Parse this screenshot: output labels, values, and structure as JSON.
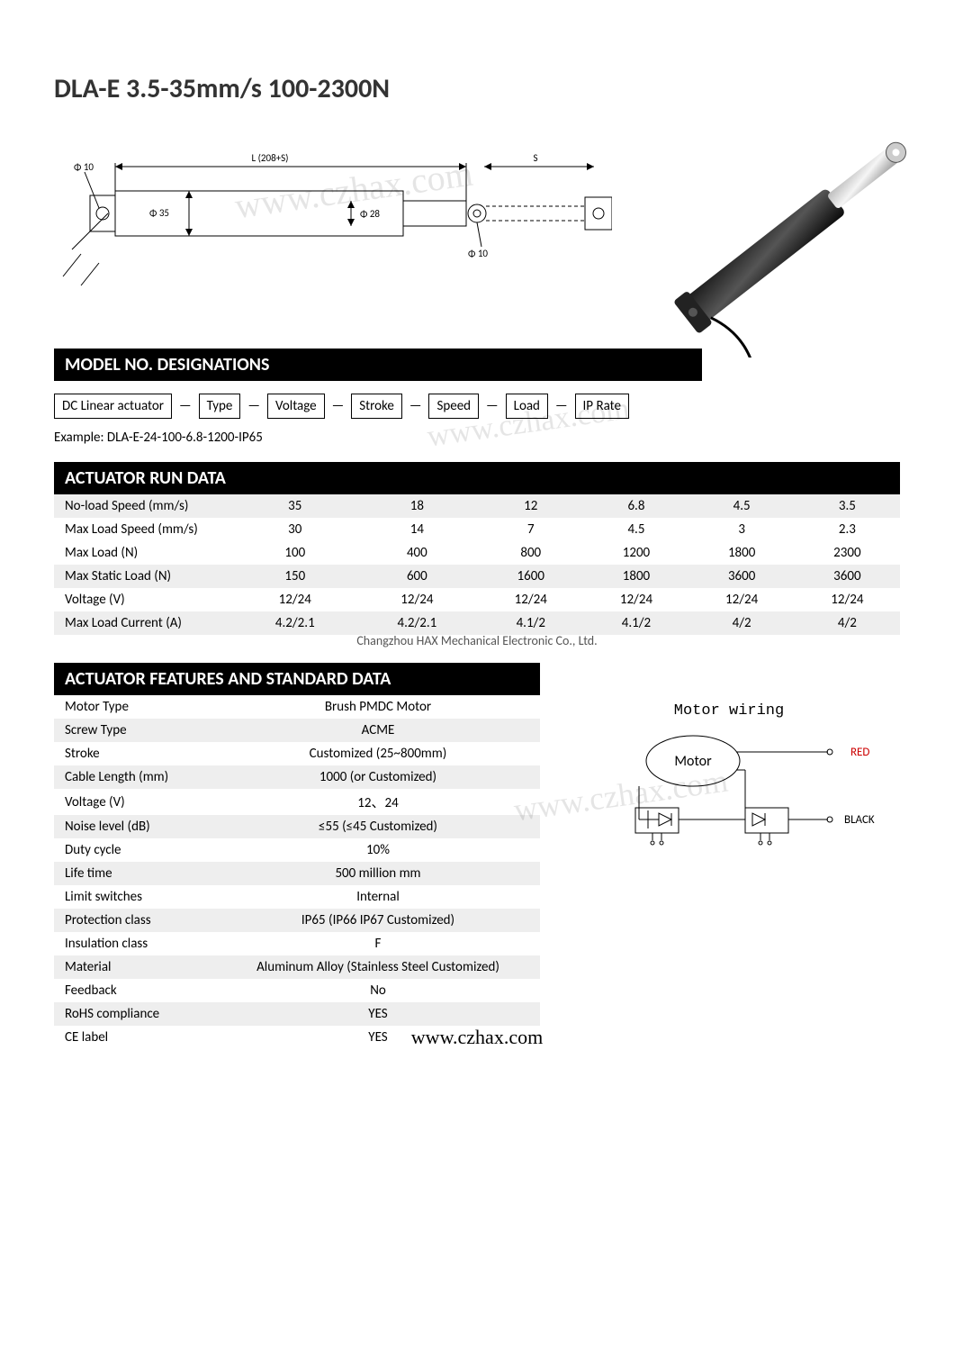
{
  "title": "DLA-E   3.5-35mm/s 100-2300N",
  "watermark": "www.czhax.com",
  "footer_url": "www.czhax.com",
  "copyright": "Changzhou HAX Mechanical Electronic Co., Ltd.",
  "diagram": {
    "labels": {
      "phi10_left": "Φ 10",
      "phi35": "Φ 35",
      "phi28": "Φ 28",
      "phi10_mid": "Φ 10",
      "L": "L (208+S)",
      "S": "S"
    }
  },
  "sections": {
    "model": "MODEL NO. DESIGNATIONS",
    "run": "ACTUATOR RUN DATA",
    "features": "ACTUATOR FEATURES AND STANDARD DATA"
  },
  "model_parts": [
    "DC Linear actuator",
    "Type",
    "Voltage",
    "Stroke",
    "Speed",
    "Load",
    "IP Rate"
  ],
  "model_example": "Example: DLA-E-24-100-6.8-1200-IP65",
  "run_data": {
    "rows": [
      {
        "label": "No-load Speed (mm/s)",
        "vals": [
          "35",
          "18",
          "12",
          "6.8",
          "4.5",
          "3.5"
        ],
        "shade": true
      },
      {
        "label": "Max Load Speed (mm/s)",
        "vals": [
          "30",
          "14",
          "7",
          "4.5",
          "3",
          "2.3"
        ],
        "shade": false
      },
      {
        "label": "Max Load (N)",
        "vals": [
          "100",
          "400",
          "800",
          "1200",
          "1800",
          "2300"
        ],
        "shade": false
      },
      {
        "label": "Max Static Load (N)",
        "vals": [
          "150",
          "600",
          "1600",
          "1800",
          "3600",
          "3600"
        ],
        "shade": true
      },
      {
        "label": "Voltage (V)",
        "vals": [
          "12/24",
          "12/24",
          "12/24",
          "12/24",
          "12/24",
          "12/24"
        ],
        "shade": false
      },
      {
        "label": "Max Load Current (A)",
        "vals": [
          "4.2/2.1",
          "4.2/2.1",
          "4.1/2",
          "4.1/2",
          "4/2",
          "4/2"
        ],
        "shade": true
      }
    ]
  },
  "features": {
    "rows": [
      {
        "label": "Motor Type",
        "val": "Brush PMDC Motor",
        "shade": false
      },
      {
        "label": "Screw Type",
        "val": "ACME",
        "shade": true
      },
      {
        "label": "Stroke",
        "val": "Customized (25~800mm)",
        "shade": false
      },
      {
        "label": "Cable Length (mm)",
        "val": "1000 (or Customized)",
        "shade": true
      },
      {
        "label": "Voltage (V)",
        "val": "12、24",
        "shade": false
      },
      {
        "label": "Noise level (dB)",
        "val": "≤55 (≤45 Customized)",
        "shade": true
      },
      {
        "label": "Duty cycle",
        "val": "10%",
        "shade": false
      },
      {
        "label": "Life time",
        "val": "500 million mm",
        "shade": true
      },
      {
        "label": "Limit switches",
        "val": "Internal",
        "shade": false
      },
      {
        "label": "Protection class",
        "val": "IP65 (IP66 IP67 Customized)",
        "shade": true
      },
      {
        "label": "Insulation class",
        "val": "F",
        "shade": false
      },
      {
        "label": "Material",
        "val": "Aluminum Alloy (Stainless Steel Customized)",
        "shade": true
      },
      {
        "label": "Feedback",
        "val": "No",
        "shade": false
      },
      {
        "label": "RoHS compliance",
        "val": "YES",
        "shade": true
      },
      {
        "label": "CE label",
        "val": "YES",
        "shade": false
      }
    ]
  },
  "wiring": {
    "title": "Motor wiring",
    "motor_label": "Motor",
    "red_label": "RED",
    "black_label": "BLACK",
    "red_color": "#cc0000",
    "black_color": "#000000"
  }
}
